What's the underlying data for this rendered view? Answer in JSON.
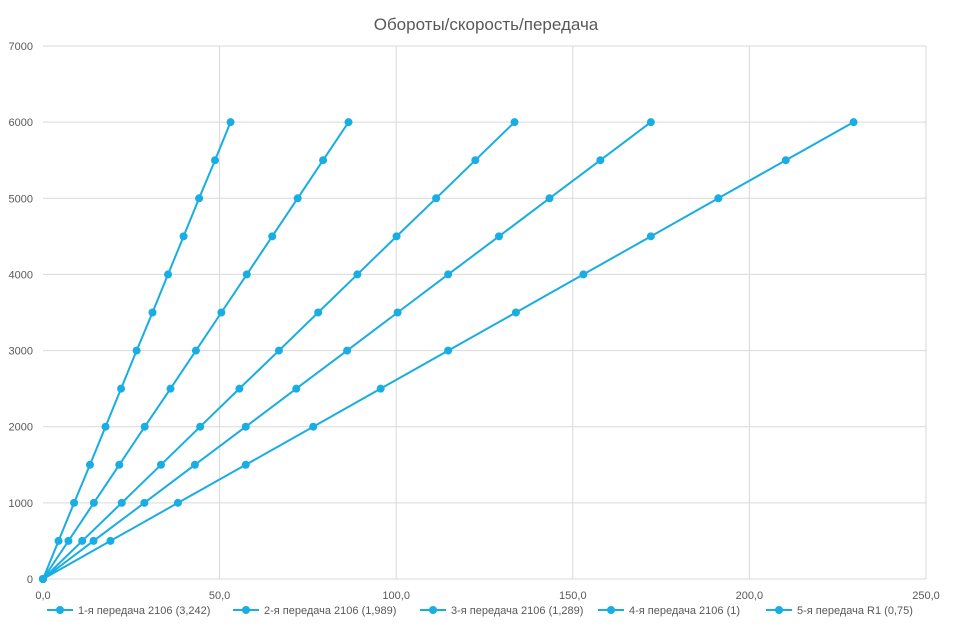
{
  "chart_data": {
    "type": "scatter",
    "title": "Обороты/скорость/передача",
    "xlim": [
      0,
      250
    ],
    "ylim": [
      0,
      7000
    ],
    "x_ticks": [
      0,
      50,
      100,
      150,
      200,
      250
    ],
    "x_tick_labels": [
      "0,0",
      "50,0",
      "100,0",
      "150,0",
      "200,0",
      "250,0"
    ],
    "y_ticks": [
      0,
      1000,
      2000,
      3000,
      4000,
      5000,
      6000,
      7000
    ],
    "y_tick_labels": [
      "0",
      "1000",
      "2000",
      "3000",
      "4000",
      "5000",
      "6000",
      "7000"
    ],
    "grid": true,
    "legend_position": "bottom",
    "color": "#18ADE3",
    "series": [
      {
        "name": "1-я передача 2106 (3,242)",
        "x": [
          0,
          4.4,
          8.8,
          13.3,
          17.7,
          22.1,
          26.5,
          31.0,
          35.4,
          39.8,
          44.2,
          48.7,
          53.1
        ],
        "y": [
          0,
          500,
          1000,
          1500,
          2000,
          2500,
          3000,
          3500,
          4000,
          4500,
          5000,
          5500,
          6000
        ]
      },
      {
        "name": "2-я передача 2106 (1,989)",
        "x": [
          0,
          7.2,
          14.4,
          21.6,
          28.8,
          36.1,
          43.3,
          50.5,
          57.7,
          64.9,
          72.1,
          79.3,
          86.5
        ],
        "y": [
          0,
          500,
          1000,
          1500,
          2000,
          2500,
          3000,
          3500,
          4000,
          4500,
          5000,
          5500,
          6000
        ]
      },
      {
        "name": "3-я передача 2106 (1,289)",
        "x": [
          0,
          11.1,
          22.3,
          33.4,
          44.5,
          55.6,
          66.8,
          77.9,
          89.0,
          100.1,
          111.3,
          122.4,
          133.5
        ],
        "y": [
          0,
          500,
          1000,
          1500,
          2000,
          2500,
          3000,
          3500,
          4000,
          4500,
          5000,
          5500,
          6000
        ]
      },
      {
        "name": "4-я передача 2106 (1)",
        "x": [
          0,
          14.3,
          28.7,
          43.0,
          57.4,
          71.7,
          86.1,
          100.4,
          114.7,
          129.1,
          143.4,
          157.8,
          172.1
        ],
        "y": [
          0,
          500,
          1000,
          1500,
          2000,
          2500,
          3000,
          3500,
          4000,
          4500,
          5000,
          5500,
          6000
        ]
      },
      {
        "name": "5-я передача R1 (0,75)",
        "x": [
          0,
          19.1,
          38.2,
          57.4,
          76.5,
          95.6,
          114.7,
          133.9,
          153.0,
          172.1,
          191.2,
          210.3,
          229.5
        ],
        "y": [
          0,
          500,
          1000,
          1500,
          2000,
          2500,
          3000,
          3500,
          4000,
          4500,
          5000,
          5500,
          6000
        ]
      }
    ]
  }
}
